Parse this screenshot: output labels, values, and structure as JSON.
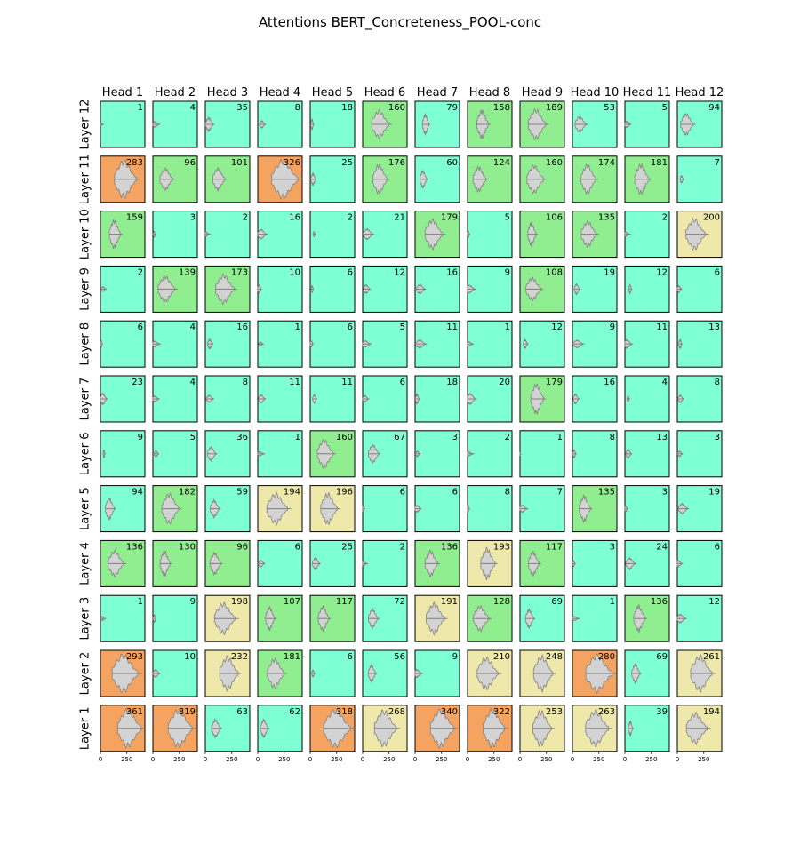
{
  "chart_data": {
    "type": "violin-grid",
    "title": "Attentions BERT_Concreteness_POOL-conc",
    "column_labels": [
      "Head 1",
      "Head 2",
      "Head 3",
      "Head 4",
      "Head 5",
      "Head 6",
      "Head 7",
      "Head 8",
      "Head 9",
      "Head 10",
      "Head 11",
      "Head 12"
    ],
    "row_labels": [
      "Layer 12",
      "Layer 11",
      "Layer 10",
      "Layer 9",
      "Layer 8",
      "Layer 7",
      "Layer 6",
      "Layer 5",
      "Layer 4",
      "Layer 3",
      "Layer 2",
      "Layer 1"
    ],
    "x_ticks": [
      "0",
      "250"
    ],
    "xlim": [
      0,
      420
    ],
    "counts": [
      [
        1,
        4,
        35,
        8,
        18,
        160,
        79,
        158,
        189,
        53,
        5,
        94
      ],
      [
        283,
        96,
        101,
        326,
        25,
        176,
        60,
        124,
        160,
        174,
        181,
        7
      ],
      [
        159,
        3,
        2,
        16,
        2,
        21,
        179,
        5,
        106,
        135,
        2,
        200
      ],
      [
        2,
        139,
        173,
        10,
        6,
        12,
        16,
        9,
        108,
        19,
        12,
        6
      ],
      [
        6,
        4,
        16,
        1,
        6,
        5,
        11,
        1,
        12,
        9,
        11,
        13
      ],
      [
        23,
        4,
        8,
        11,
        11,
        6,
        18,
        20,
        179,
        16,
        4,
        8
      ],
      [
        9,
        5,
        36,
        1,
        160,
        67,
        3,
        2,
        1,
        8,
        13,
        3
      ],
      [
        94,
        182,
        59,
        194,
        196,
        6,
        6,
        8,
        7,
        135,
        3,
        19
      ],
      [
        136,
        130,
        96,
        6,
        25,
        2,
        136,
        193,
        117,
        3,
        24,
        6
      ],
      [
        1,
        9,
        198,
        107,
        117,
        72,
        191,
        128,
        69,
        1,
        136,
        12
      ],
      [
        293,
        10,
        232,
        181,
        6,
        56,
        9,
        210,
        248,
        280,
        69,
        261
      ],
      [
        361,
        319,
        63,
        62,
        318,
        268,
        340,
        322,
        253,
        263,
        39,
        194
      ]
    ],
    "colors": {
      "low": "#7fffd4",
      "medium": "#90ee90",
      "high": "#eee8aa",
      "very_high": "#f4a460",
      "violin_fill": "#d3d3d3",
      "violin_edge": "#808080"
    }
  }
}
